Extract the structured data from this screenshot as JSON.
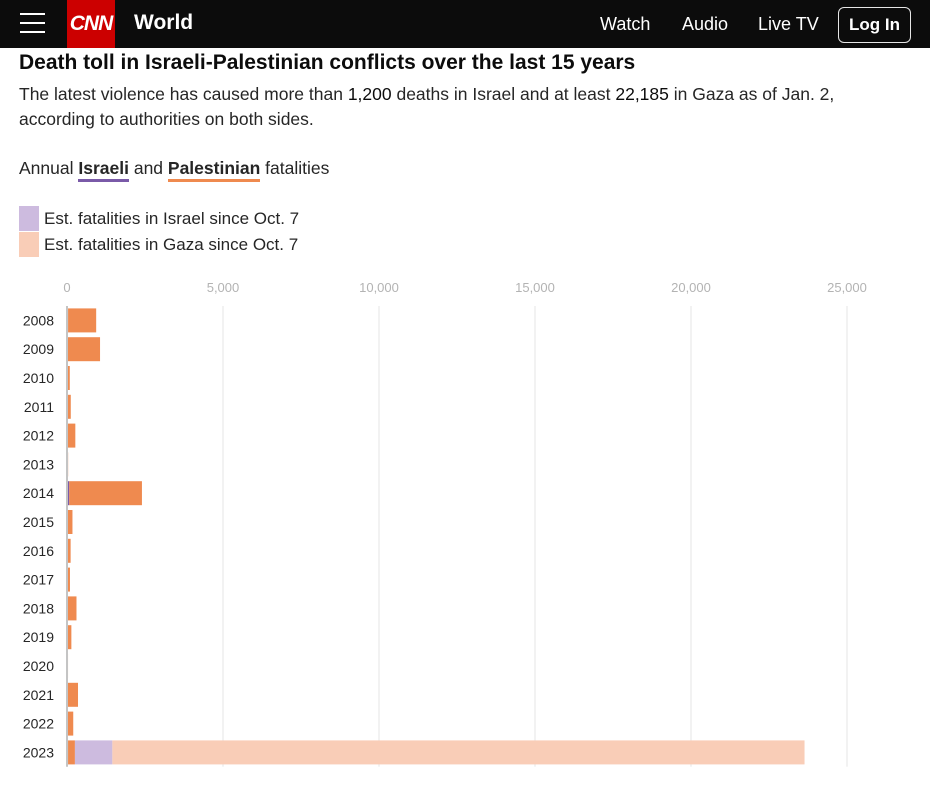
{
  "header": {
    "menu_icon": "hamburger-menu-icon",
    "logo_text": "CNN",
    "section": "World",
    "nav": [
      "Watch",
      "Audio",
      "Live TV"
    ],
    "login_label": "Log In"
  },
  "article": {
    "title": "Death toll in Israeli-Palestinian conflicts over the last 15 years",
    "subtitle_parts": {
      "p1": "The latest violence has caused more than ",
      "n1": "1,200",
      "p2": " deaths in Israel and at least ",
      "n2": "22,185",
      "p3": " in Gaza as of Jan. 2, according to authorities on both sides."
    }
  },
  "legend": {
    "title_prefix": "Annual ",
    "israeli": "Israeli",
    "and": " and ",
    "palestinian": "Palestinian",
    "title_suffix": " fatalities",
    "est_israel": "Est. fatalities in Israel since Oct. 7",
    "est_gaza": "Est. fatalities in Gaza since Oct. 7"
  },
  "colors": {
    "israeli": "#7a5aa8",
    "palestinian": "#ef8a4f",
    "est_israel": "#cdbbdf",
    "est_gaza": "#f9cdb7",
    "grid": "#e6e6e6",
    "axis": "#c4c4c4",
    "tick_text": "#b3b3b3",
    "label_text": "#262626"
  },
  "chart_data": {
    "type": "bar",
    "orientation": "horizontal",
    "stacked": true,
    "title": "Death toll in Israeli-Palestinian conflicts over the last 15 years",
    "xlim": [
      0,
      25000
    ],
    "x_ticks": [
      0,
      5000,
      10000,
      15000,
      20000,
      25000
    ],
    "x_tick_labels": [
      "0",
      "5,000",
      "10,000",
      "15,000",
      "20,000",
      "25,000"
    ],
    "grid": true,
    "categories": [
      "2008",
      "2009",
      "2010",
      "2011",
      "2012",
      "2013",
      "2014",
      "2015",
      "2016",
      "2017",
      "2018",
      "2019",
      "2020",
      "2021",
      "2022",
      "2023"
    ],
    "series": [
      {
        "name": "Israeli",
        "values": [
          35,
          9,
          9,
          11,
          7,
          6,
          72,
          25,
          16,
          15,
          14,
          10,
          3,
          13,
          30,
          34
        ]
      },
      {
        "name": "Palestinian",
        "values": [
          900,
          1050,
          80,
          110,
          260,
          30,
          2330,
          150,
          100,
          80,
          290,
          130,
          30,
          340,
          170,
          220
        ]
      },
      {
        "name": "Est. fatalities in Israel since Oct. 7",
        "values": [
          0,
          0,
          0,
          0,
          0,
          0,
          0,
          0,
          0,
          0,
          0,
          0,
          0,
          0,
          0,
          1200
        ]
      },
      {
        "name": "Est. fatalities in Gaza since Oct. 7",
        "values": [
          0,
          0,
          0,
          0,
          0,
          0,
          0,
          0,
          0,
          0,
          0,
          0,
          0,
          0,
          0,
          22185
        ]
      }
    ],
    "legend_position": "top-left"
  }
}
